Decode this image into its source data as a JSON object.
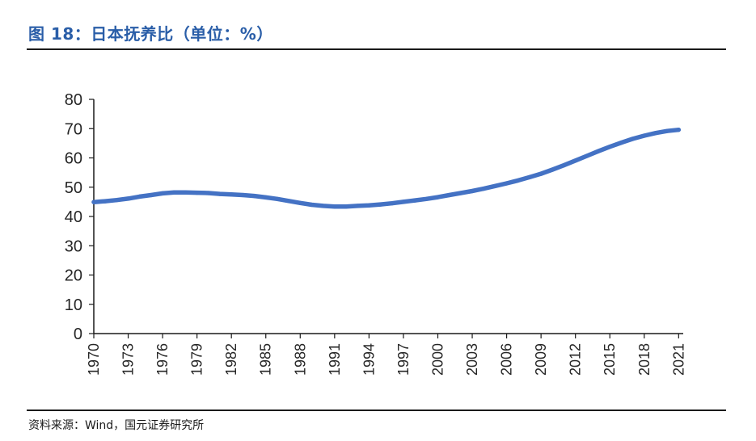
{
  "header": {
    "figure_title": "图 18：日本抚养比（单位：%）"
  },
  "footer": {
    "source": "资料来源：Wind，国元证券研究所"
  },
  "colors": {
    "title": "#2a5ea8",
    "line": "#4472c4",
    "axis": "#1a1a1a"
  },
  "chart_data": {
    "type": "line",
    "title": "图 18：日本抚养比（单位：%）",
    "xlabel": "",
    "ylabel": "",
    "ylim": [
      0,
      80
    ],
    "yticks": [
      "0",
      "10",
      "20",
      "30",
      "40",
      "50",
      "60",
      "70",
      "80"
    ],
    "xticks": [
      "1970",
      "1973",
      "1976",
      "1979",
      "1982",
      "1985",
      "1988",
      "1991",
      "1994",
      "1997",
      "2000",
      "2003",
      "2006",
      "2009",
      "2012",
      "2015",
      "2018",
      "2021"
    ],
    "grid": false,
    "legend": "none",
    "series": [
      {
        "x": [
          1970,
          1971,
          1972,
          1973,
          1974,
          1975,
          1976,
          1977,
          1978,
          1979,
          1980,
          1981,
          1982,
          1983,
          1984,
          1985,
          1986,
          1987,
          1988,
          1989,
          1990,
          1991,
          1992,
          1993,
          1994,
          1995,
          1996,
          1997,
          1998,
          1999,
          2000,
          2001,
          2002,
          2003,
          2004,
          2005,
          2006,
          2007,
          2008,
          2009,
          2010,
          2011,
          2012,
          2013,
          2014,
          2015,
          2016,
          2017,
          2018,
          2019,
          2020,
          2021
        ],
        "values": [
          44.9,
          45.2,
          45.6,
          46.1,
          46.8,
          47.3,
          47.9,
          48.2,
          48.2,
          48.1,
          48.0,
          47.7,
          47.5,
          47.3,
          47.0,
          46.5,
          46.0,
          45.3,
          44.6,
          44.0,
          43.6,
          43.4,
          43.4,
          43.6,
          43.8,
          44.1,
          44.5,
          45.0,
          45.5,
          46.0,
          46.6,
          47.3,
          48.0,
          48.7,
          49.5,
          50.4,
          51.3,
          52.3,
          53.4,
          54.6,
          56.0,
          57.5,
          59.1,
          60.7,
          62.3,
          63.8,
          65.2,
          66.5,
          67.6,
          68.5,
          69.2,
          69.6
        ]
      }
    ]
  }
}
